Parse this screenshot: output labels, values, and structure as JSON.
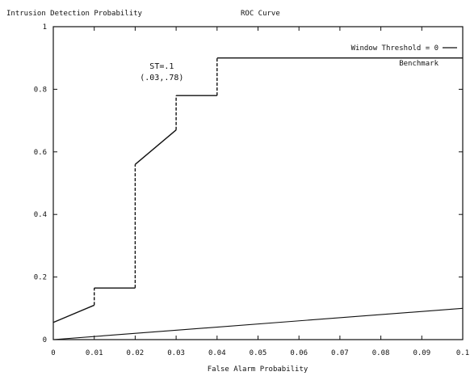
{
  "chart_data": {
    "type": "line",
    "title": "ROC Curve",
    "ylabel": "Intrusion Detection Probability",
    "xlabel": "False Alarm Probability",
    "xlim": [
      0,
      0.1
    ],
    "ylim": [
      0,
      1
    ],
    "xticks": [
      "0",
      "0.01",
      "0.02",
      "0.03",
      "0.04",
      "0.05",
      "0.06",
      "0.07",
      "0.08",
      "0.09",
      "0.1"
    ],
    "xtick_values": [
      0,
      0.01,
      0.02,
      0.03,
      0.04,
      0.05,
      0.06,
      0.07,
      0.08,
      0.09,
      0.1
    ],
    "yticks": [
      "0",
      "0.2",
      "0.4",
      "0.6",
      "0.8",
      "1"
    ],
    "ytick_values": [
      0,
      0.2,
      0.4,
      0.6,
      0.8,
      1
    ],
    "grid": false,
    "legend_position": "top-right",
    "series": [
      {
        "name": "Window Threshold = 0",
        "style": "staircase",
        "segments": [
          {
            "kind": "line",
            "points": [
              [
                0,
                0.055
              ],
              [
                0.01,
                0.11
              ]
            ]
          },
          {
            "kind": "vertical-dashed",
            "points": [
              [
                0.01,
                0.11
              ],
              [
                0.01,
                0.165
              ]
            ]
          },
          {
            "kind": "horizontal",
            "points": [
              [
                0.01,
                0.165
              ],
              [
                0.02,
                0.165
              ]
            ]
          },
          {
            "kind": "vertical-dashed",
            "points": [
              [
                0.02,
                0.165
              ],
              [
                0.02,
                0.56
              ]
            ]
          },
          {
            "kind": "line",
            "points": [
              [
                0.02,
                0.56
              ],
              [
                0.03,
                0.67
              ]
            ]
          },
          {
            "kind": "vertical-dashed",
            "points": [
              [
                0.03,
                0.67
              ],
              [
                0.03,
                0.78
              ]
            ]
          },
          {
            "kind": "horizontal",
            "points": [
              [
                0.03,
                0.78
              ],
              [
                0.04,
                0.78
              ]
            ]
          },
          {
            "kind": "vertical-dashed",
            "points": [
              [
                0.04,
                0.78
              ],
              [
                0.04,
                0.9
              ]
            ]
          },
          {
            "kind": "horizontal",
            "points": [
              [
                0.04,
                0.9
              ],
              [
                0.1,
                0.9
              ]
            ]
          }
        ]
      },
      {
        "name": "Benchmark",
        "style": "line",
        "points": [
          [
            0,
            0
          ],
          [
            0.1,
            0.1
          ]
        ]
      }
    ],
    "annotations": [
      {
        "line1": "ST=.1",
        "line2": "(.03,.78)",
        "x": 0.0265,
        "y": 0.84
      }
    ],
    "colors": {
      "line": "#111111",
      "axis": "#111111",
      "background": "#ffffff"
    }
  }
}
